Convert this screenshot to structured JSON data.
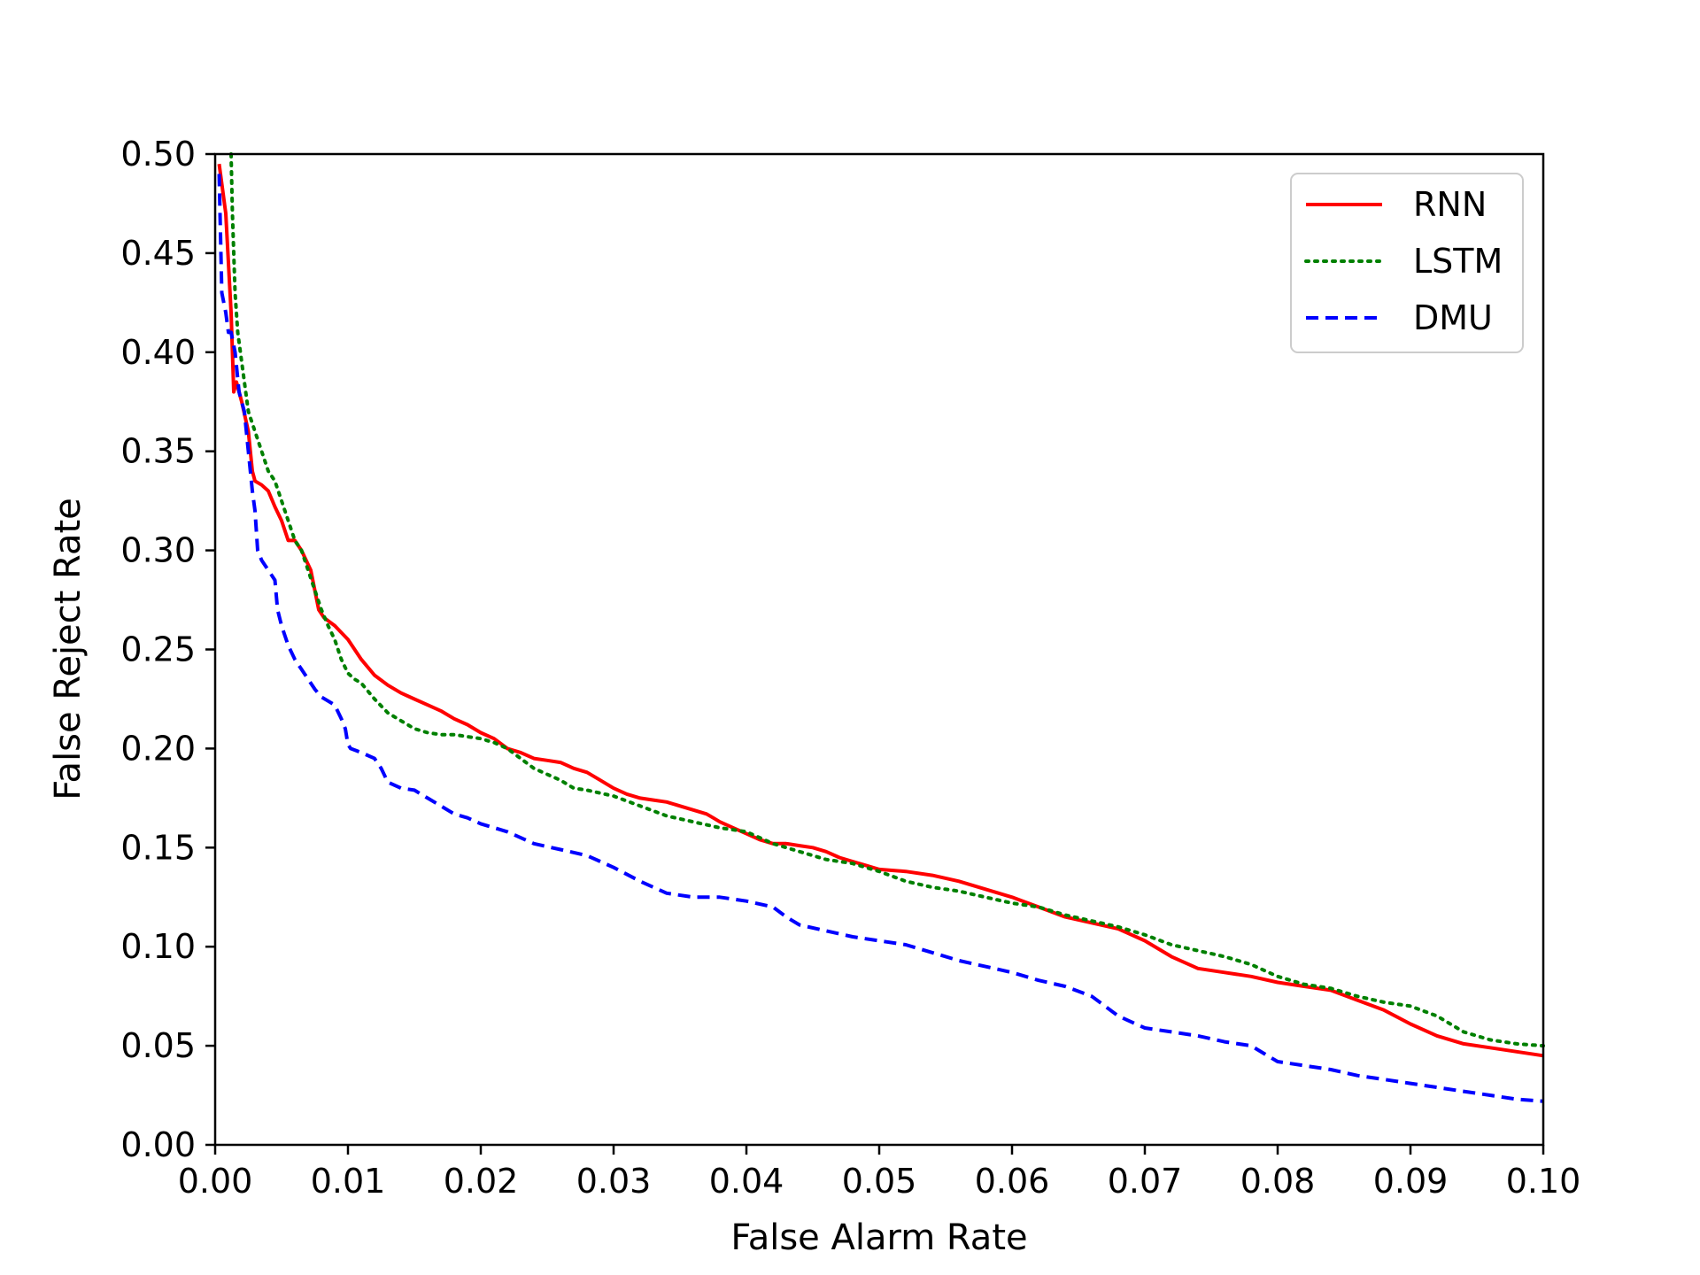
{
  "chart_data": {
    "type": "line",
    "title": "",
    "xlabel": "False Alarm Rate",
    "ylabel": "False Reject Rate",
    "xlim": [
      0.0,
      0.1
    ],
    "ylim": [
      0.0,
      0.5
    ],
    "xticks": [
      "0.00",
      "0.01",
      "0.02",
      "0.03",
      "0.04",
      "0.05",
      "0.06",
      "0.07",
      "0.08",
      "0.09",
      "0.10"
    ],
    "yticks": [
      "0.00",
      "0.05",
      "0.10",
      "0.15",
      "0.20",
      "0.25",
      "0.30",
      "0.35",
      "0.40",
      "0.45",
      "0.50"
    ],
    "grid": false,
    "legend_position": "top-right",
    "series": [
      {
        "name": "RNN",
        "color": "#ff0000",
        "style": "solid",
        "x": [
          0.0003,
          0.0008,
          0.0012,
          0.0014,
          0.0016,
          0.002,
          0.0025,
          0.0028,
          0.003,
          0.0035,
          0.004,
          0.0045,
          0.005,
          0.0055,
          0.006,
          0.0065,
          0.0072,
          0.0075,
          0.0078,
          0.008,
          0.0082,
          0.009,
          0.01,
          0.0105,
          0.011,
          0.012,
          0.013,
          0.014,
          0.015,
          0.016,
          0.017,
          0.018,
          0.019,
          0.02,
          0.021,
          0.022,
          0.023,
          0.024,
          0.025,
          0.026,
          0.027,
          0.028,
          0.029,
          0.03,
          0.031,
          0.032,
          0.033,
          0.034,
          0.035,
          0.036,
          0.037,
          0.0375,
          0.038,
          0.039,
          0.04,
          0.041,
          0.042,
          0.043,
          0.044,
          0.045,
          0.046,
          0.047,
          0.048,
          0.049,
          0.05,
          0.052,
          0.054,
          0.056,
          0.058,
          0.06,
          0.062,
          0.064,
          0.066,
          0.068,
          0.07,
          0.072,
          0.074,
          0.076,
          0.078,
          0.08,
          0.082,
          0.084,
          0.086,
          0.088,
          0.09,
          0.092,
          0.094,
          0.096,
          0.098,
          0.1
        ],
        "y": [
          0.495,
          0.47,
          0.42,
          0.38,
          0.385,
          0.375,
          0.36,
          0.34,
          0.335,
          0.333,
          0.33,
          0.322,
          0.315,
          0.305,
          0.305,
          0.3,
          0.29,
          0.28,
          0.27,
          0.268,
          0.266,
          0.262,
          0.255,
          0.25,
          0.245,
          0.237,
          0.232,
          0.228,
          0.225,
          0.222,
          0.219,
          0.215,
          0.212,
          0.208,
          0.205,
          0.2,
          0.198,
          0.195,
          0.194,
          0.193,
          0.19,
          0.188,
          0.184,
          0.18,
          0.177,
          0.175,
          0.174,
          0.173,
          0.171,
          0.169,
          0.167,
          0.165,
          0.163,
          0.16,
          0.157,
          0.154,
          0.152,
          0.152,
          0.151,
          0.15,
          0.148,
          0.145,
          0.143,
          0.141,
          0.139,
          0.138,
          0.136,
          0.133,
          0.129,
          0.125,
          0.12,
          0.115,
          0.112,
          0.109,
          0.103,
          0.095,
          0.089,
          0.087,
          0.085,
          0.082,
          0.08,
          0.078,
          0.073,
          0.068,
          0.061,
          0.055,
          0.051,
          0.049,
          0.047,
          0.045
        ]
      },
      {
        "name": "LSTM",
        "color": "#008000",
        "style": "dotted",
        "x": [
          0.0012,
          0.0013,
          0.0015,
          0.0017,
          0.002,
          0.0025,
          0.003,
          0.0035,
          0.004,
          0.0045,
          0.005,
          0.0055,
          0.006,
          0.0065,
          0.007,
          0.0075,
          0.008,
          0.0085,
          0.009,
          0.0095,
          0.01,
          0.0105,
          0.011,
          0.012,
          0.013,
          0.014,
          0.015,
          0.016,
          0.017,
          0.018,
          0.019,
          0.02,
          0.021,
          0.022,
          0.023,
          0.024,
          0.025,
          0.026,
          0.027,
          0.028,
          0.03,
          0.032,
          0.034,
          0.036,
          0.038,
          0.04,
          0.042,
          0.044,
          0.046,
          0.048,
          0.05,
          0.052,
          0.054,
          0.056,
          0.058,
          0.06,
          0.062,
          0.064,
          0.066,
          0.068,
          0.07,
          0.072,
          0.074,
          0.076,
          0.078,
          0.08,
          0.082,
          0.084,
          0.086,
          0.088,
          0.09,
          0.092,
          0.094,
          0.096,
          0.098,
          0.1
        ],
        "y": [
          0.5,
          0.47,
          0.43,
          0.41,
          0.395,
          0.37,
          0.36,
          0.35,
          0.34,
          0.335,
          0.325,
          0.315,
          0.305,
          0.3,
          0.29,
          0.28,
          0.27,
          0.262,
          0.255,
          0.245,
          0.238,
          0.235,
          0.233,
          0.225,
          0.218,
          0.214,
          0.21,
          0.208,
          0.207,
          0.207,
          0.206,
          0.205,
          0.203,
          0.2,
          0.195,
          0.19,
          0.187,
          0.184,
          0.18,
          0.179,
          0.176,
          0.171,
          0.166,
          0.163,
          0.16,
          0.158,
          0.152,
          0.148,
          0.144,
          0.142,
          0.138,
          0.133,
          0.13,
          0.128,
          0.125,
          0.122,
          0.12,
          0.116,
          0.113,
          0.11,
          0.106,
          0.101,
          0.098,
          0.095,
          0.091,
          0.085,
          0.081,
          0.079,
          0.075,
          0.072,
          0.07,
          0.065,
          0.057,
          0.053,
          0.051,
          0.05
        ]
      },
      {
        "name": "DMU",
        "color": "#0000ff",
        "style": "dashed",
        "x": [
          0.0003,
          0.0005,
          0.0008,
          0.001,
          0.0012,
          0.0015,
          0.0018,
          0.002,
          0.0022,
          0.0025,
          0.0028,
          0.003,
          0.0032,
          0.0035,
          0.004,
          0.0045,
          0.0047,
          0.005,
          0.0055,
          0.006,
          0.0065,
          0.007,
          0.0075,
          0.008,
          0.0085,
          0.009,
          0.0095,
          0.0098,
          0.01,
          0.0102,
          0.011,
          0.012,
          0.0125,
          0.013,
          0.014,
          0.015,
          0.016,
          0.017,
          0.018,
          0.019,
          0.02,
          0.022,
          0.024,
          0.026,
          0.028,
          0.03,
          0.032,
          0.034,
          0.036,
          0.038,
          0.04,
          0.042,
          0.043,
          0.044,
          0.046,
          0.048,
          0.05,
          0.052,
          0.054,
          0.056,
          0.058,
          0.06,
          0.062,
          0.064,
          0.066,
          0.068,
          0.07,
          0.072,
          0.074,
          0.076,
          0.078,
          0.079,
          0.08,
          0.082,
          0.084,
          0.086,
          0.088,
          0.09,
          0.092,
          0.094,
          0.096,
          0.098,
          0.1
        ],
        "y": [
          0.49,
          0.43,
          0.42,
          0.41,
          0.41,
          0.4,
          0.38,
          0.375,
          0.37,
          0.35,
          0.33,
          0.32,
          0.3,
          0.295,
          0.29,
          0.285,
          0.27,
          0.262,
          0.252,
          0.245,
          0.24,
          0.235,
          0.23,
          0.226,
          0.224,
          0.222,
          0.215,
          0.21,
          0.202,
          0.2,
          0.198,
          0.195,
          0.19,
          0.183,
          0.18,
          0.179,
          0.175,
          0.171,
          0.167,
          0.165,
          0.162,
          0.158,
          0.152,
          0.149,
          0.146,
          0.14,
          0.133,
          0.127,
          0.125,
          0.125,
          0.123,
          0.12,
          0.115,
          0.111,
          0.108,
          0.105,
          0.103,
          0.101,
          0.097,
          0.093,
          0.09,
          0.087,
          0.083,
          0.08,
          0.075,
          0.065,
          0.059,
          0.057,
          0.055,
          0.052,
          0.05,
          0.046,
          0.042,
          0.04,
          0.038,
          0.035,
          0.033,
          0.031,
          0.029,
          0.027,
          0.025,
          0.023,
          0.022
        ]
      }
    ]
  }
}
